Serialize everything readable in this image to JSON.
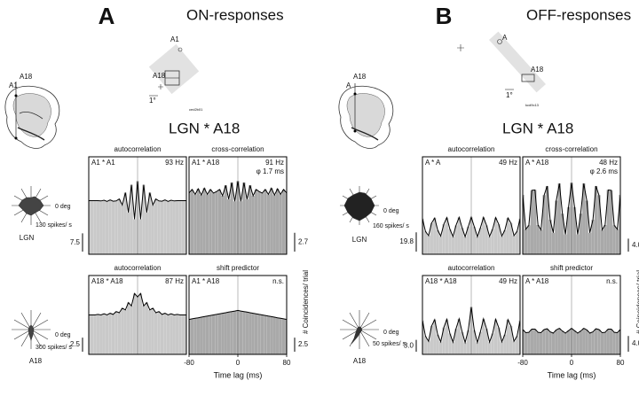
{
  "lags": [
    -80,
    -75,
    -70,
    -65,
    -60,
    -55,
    -50,
    -45,
    -40,
    -35,
    -30,
    -25,
    -20,
    -15,
    -10,
    -5,
    0,
    5,
    10,
    15,
    20,
    25,
    30,
    35,
    40,
    45,
    50,
    55,
    60,
    65,
    70,
    75,
    80
  ],
  "panels": [
    {
      "letter": "A",
      "title": "ON-responses",
      "pair_title": "LGN * A18",
      "brain_labels": [
        "A18",
        "A1"
      ],
      "rf_labels": [
        "A1",
        "A18",
        "1°",
        "ced2b01"
      ],
      "polar": [
        {
          "angle_label": "0 deg",
          "rate": "130 spikes/ s",
          "area": "LGN"
        },
        {
          "angle_label": "0 deg",
          "rate": "300 spikes/ s",
          "area": "A18"
        }
      ],
      "xlim": [
        -80,
        80
      ],
      "xticks": [
        -80,
        0,
        80
      ],
      "x_label": "Time lag (ms)",
      "y_label": "# Coincidences/ trial",
      "correlograms": [
        {
          "title": "autocorrelation",
          "pair": "A1 * A1",
          "freq": "93 Hz",
          "scale": 7.5,
          "ylim": [
            0,
            40
          ],
          "color": "#c9c9c9",
          "values": [
            22,
            22,
            22,
            22,
            21.9,
            22.2,
            21.7,
            22.3,
            21.8,
            21.9,
            22.7,
            20.2,
            25.3,
            17.1,
            28.5,
            14.4,
            30,
            14.4,
            28.5,
            17.1,
            25.3,
            20.2,
            22.7,
            21.9,
            21.8,
            22.3,
            21.7,
            22.2,
            21.9,
            22,
            22,
            22,
            22
          ]
        },
        {
          "title": "cross-correlation",
          "pair": "A1 * A18",
          "freq": "91 Hz",
          "note": "φ 1.7 ms",
          "scale": 2.7,
          "ylim": [
            0,
            14
          ],
          "color": "#a9a9a9",
          "values": [
            8.8,
            9.3,
            8.6,
            9.4,
            8.5,
            9.5,
            8.6,
            9.3,
            8.8,
            9.0,
            9.3,
            8.4,
            9.9,
            7.9,
            10.3,
            7.6,
            10.5,
            7.6,
            10.3,
            7.9,
            9.9,
            8.4,
            9.3,
            9.0,
            8.8,
            9.3,
            8.6,
            9.5,
            8.5,
            9.4,
            8.6,
            9.3,
            8.8
          ]
        },
        {
          "title": "autocorrelation",
          "pair": "A18 * A18",
          "freq": "87 Hz",
          "scale": 2.5,
          "ylim": [
            0,
            14
          ],
          "color": "#c9c9c9",
          "values": [
            7,
            7,
            7,
            7.1,
            7,
            7.2,
            7,
            7.3,
            7.1,
            7.6,
            7.4,
            8.2,
            7.9,
            9.2,
            8.6,
            10.8,
            10.2,
            10.8,
            8.6,
            9.2,
            7.9,
            8.2,
            7.4,
            7.6,
            7.1,
            7.3,
            7,
            7.2,
            7,
            7.1,
            7,
            7,
            7
          ]
        },
        {
          "title": "shift predictor",
          "pair": "A1 * A18",
          "freq": "n.s.",
          "scale": 2.5,
          "ylim": [
            0,
            14
          ],
          "color": "#a9a9a9",
          "values": [
            6.2,
            6.3,
            6.4,
            6.5,
            6.6,
            6.7,
            6.8,
            6.9,
            7.0,
            7.1,
            7.2,
            7.3,
            7.4,
            7.5,
            7.6,
            7.7,
            7.8,
            7.7,
            7.6,
            7.5,
            7.4,
            7.3,
            7.2,
            7.1,
            7.0,
            6.9,
            6.8,
            6.7,
            6.6,
            6.5,
            6.4,
            6.3,
            6.2
          ]
        }
      ]
    },
    {
      "letter": "B",
      "title": "OFF-responses",
      "pair_title": "LGN * A18",
      "brain_labels": [
        "A18",
        "A"
      ],
      "rf_labels": [
        "A",
        "A18",
        "1°",
        "kcd9c13"
      ],
      "polar": [
        {
          "angle_label": "0 deg",
          "rate": "160 spikes/ s",
          "area": "LGN"
        },
        {
          "angle_label": "0 deg",
          "rate": "50 spikes/ s",
          "area": "A18"
        }
      ],
      "xlim": [
        -80,
        80
      ],
      "xticks": [
        -80,
        0,
        80
      ],
      "x_label": "Time lag (ms)",
      "y_label": "# Coincidences/ trial",
      "correlograms": [
        {
          "title": "autocorrelation",
          "pair": "A * A",
          "freq": "49 Hz",
          "scale": 19.8,
          "ylim": [
            0,
            100
          ],
          "color": "#c9c9c9",
          "values": [
            36.6,
            23.4,
            19.1,
            32,
            37.2,
            24.6,
            18.6,
            30.8,
            37.6,
            25.8,
            18.2,
            29.6,
            37.9,
            27.1,
            18,
            28.3,
            38,
            28.3,
            18,
            27.1,
            37.9,
            29.6,
            18.2,
            25.8,
            37.6,
            30.8,
            18.6,
            24.6,
            37.2,
            32,
            19.1,
            23.4,
            36.6
          ]
        },
        {
          "title": "cross-correlation",
          "pair": "A * A18",
          "freq": "48 Hz",
          "note": "φ 2.6 ms",
          "scale": {
            "value": 4,
            "label": "4.0"
          },
          "ylim": [
            0,
            30
          ],
          "color": "#a9a9a9",
          "values": [
            18.3,
            7.7,
            8.9,
            19.7,
            19.8,
            9,
            7.5,
            18.2,
            21,
            10.6,
            6.6,
            16.5,
            21.8,
            12.5,
            6.1,
            14.5,
            22,
            14.5,
            6.1,
            12.5,
            21.8,
            16.5,
            6.6,
            10.6,
            21,
            18.2,
            7.5,
            9,
            19.8,
            19.7,
            8.9,
            7.7,
            18.3
          ]
        },
        {
          "title": "autocorrelation",
          "pair": "A18 * A18",
          "freq": "49 Hz",
          "scale": {
            "value": 3,
            "label": "3.0"
          },
          "ylim": [
            0,
            20
          ],
          "color": "#c9c9c9",
          "values": [
            8.6,
            4.6,
            3.3,
            7.2,
            8.8,
            5,
            3.2,
            6.8,
            8.9,
            5.3,
            3.1,
            6.5,
            9,
            5.7,
            3,
            6.1,
            12,
            6.1,
            3,
            5.7,
            9,
            6.5,
            3.1,
            5.3,
            8.9,
            6.8,
            3.2,
            5,
            8.8,
            7.2,
            3.3,
            4.6,
            8.6
          ]
        },
        {
          "title": "shift predictor",
          "pair": "A * A18",
          "freq": "n.s.",
          "scale": {
            "value": 4,
            "label": "4.0"
          },
          "ylim": [
            0,
            20
          ],
          "color": "#a9a9a9",
          "values": [
            6.3,
            5.5,
            5.6,
            6.4,
            6.4,
            5.6,
            5.5,
            6.3,
            6.5,
            5.7,
            5.4,
            6.2,
            6.6,
            5.9,
            5.4,
            6,
            6.6,
            6,
            5.4,
            5.9,
            6.6,
            6.2,
            5.4,
            5.7,
            6.5,
            6.3,
            5.5,
            5.6,
            6.4,
            6.4,
            5.6,
            5.5,
            6.3
          ]
        }
      ]
    }
  ]
}
